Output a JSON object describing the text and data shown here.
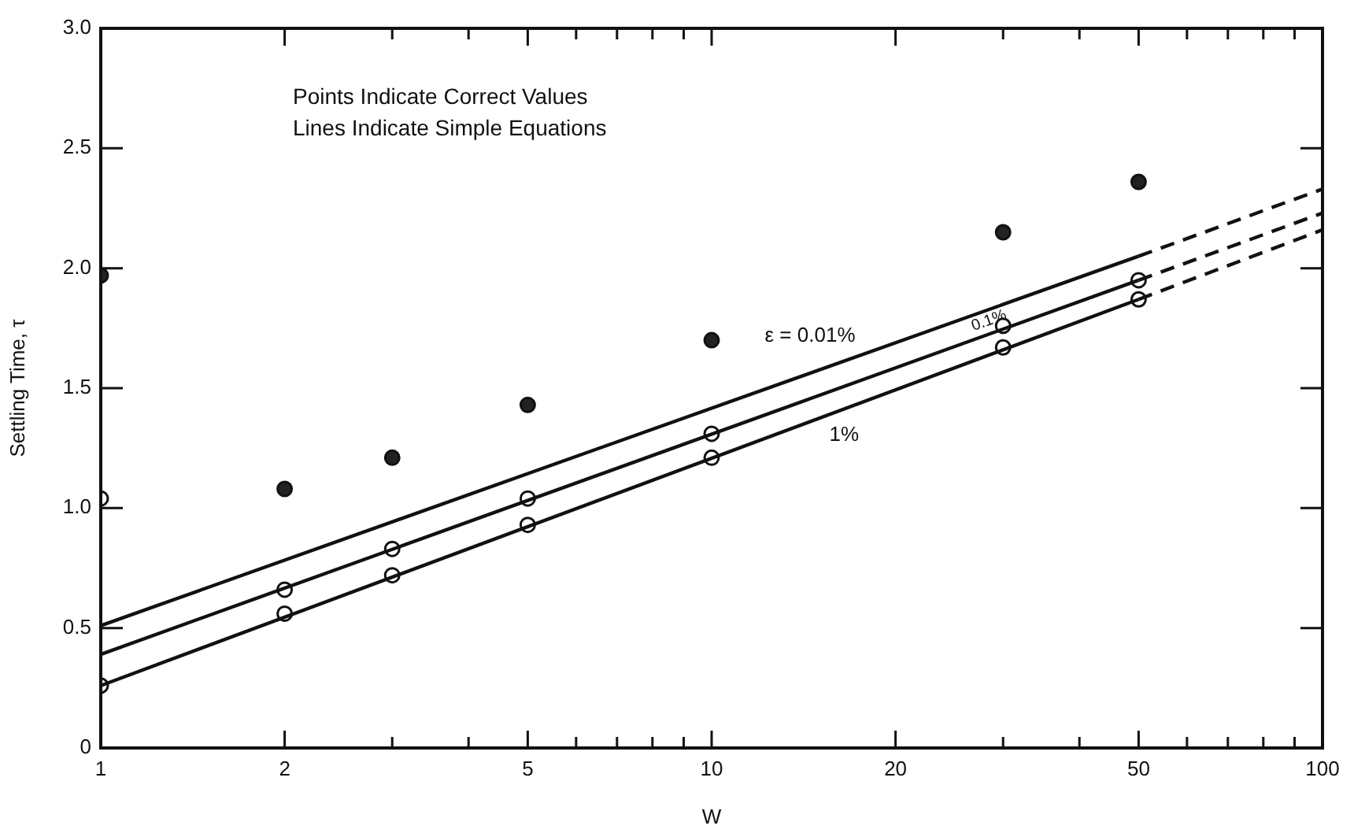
{
  "chart_data": {
    "type": "line",
    "xlabel": "W",
    "ylabel": "Settling Time, τ",
    "annotations": [
      "Points Indicate Correct Values",
      "Lines Indicate Simple Equations"
    ],
    "log": "x",
    "grid": false,
    "legend": false,
    "xlim": [
      1,
      100
    ],
    "xticks": [
      1,
      2,
      {
        "value": 3,
        "label": null
      },
      {
        "value": 4,
        "label": null
      },
      5,
      {
        "value": 6,
        "label": null
      },
      {
        "value": 7,
        "label": null
      },
      {
        "value": 8,
        "label": null
      },
      {
        "value": 9,
        "label": null
      },
      10,
      20,
      {
        "value": 30,
        "label": null
      },
      {
        "value": 40,
        "label": null
      },
      50,
      {
        "value": 60,
        "label": null
      },
      {
        "value": 70,
        "label": null
      },
      {
        "value": 80,
        "label": null
      },
      {
        "value": 90,
        "label": null
      },
      100
    ],
    "ylim": [
      0,
      3
    ],
    "yticks": [
      0,
      {
        "value": 0.5,
        "label": "0.5"
      },
      {
        "value": 1,
        "label": "1.0"
      },
      {
        "value": 1.5,
        "label": "1.5"
      },
      {
        "value": 2,
        "label": "2.0"
      },
      {
        "value": 2.5,
        "label": "2.5"
      },
      {
        "value": 3,
        "label": "3.0"
      }
    ],
    "series": [
      {
        "name": "ε = 0.01%",
        "type": "line",
        "x": [
          1,
          50
        ],
        "values": [
          0.51,
          2.05
        ],
        "color": "#111111",
        "marker": "none",
        "line_style": "solid"
      },
      {
        "type": "line",
        "x": [
          50,
          100
        ],
        "values": [
          2.05,
          2.33
        ],
        "color": "#111111",
        "marker": "none",
        "line_style": "dashed"
      },
      {
        "name": "0.1%",
        "type": "line",
        "x": [
          1,
          50
        ],
        "values": [
          0.39,
          1.95
        ],
        "color": "#111111",
        "marker": "none",
        "line_style": "solid"
      },
      {
        "type": "line",
        "x": [
          50,
          100
        ],
        "values": [
          1.95,
          2.23
        ],
        "color": "#111111",
        "marker": "none",
        "line_style": "dashed"
      },
      {
        "name": "1%",
        "type": "line",
        "x": [
          1,
          50
        ],
        "values": [
          0.26,
          1.87
        ],
        "color": "#111111",
        "marker": "none",
        "line_style": "solid"
      },
      {
        "type": "line",
        "x": [
          50,
          100
        ],
        "values": [
          1.87,
          2.16
        ],
        "color": "#111111",
        "marker": "none",
        "line_style": "dashed"
      },
      {
        "type": "scatter",
        "x": [
          1,
          2,
          3,
          5,
          10,
          30,
          50
        ],
        "values": [
          1.97,
          1.08,
          1.21,
          1.43,
          1.7,
          2.15,
          2.36
        ],
        "color": "#222222",
        "marker": "circle"
      },
      {
        "type": "scatter",
        "x": [
          1,
          2,
          3,
          5,
          10,
          30,
          50
        ],
        "values": [
          1.04,
          0.66,
          0.83,
          1.04,
          1.31,
          1.76,
          1.95
        ],
        "color": "#ffffff",
        "marker": "circle"
      },
      {
        "type": "scatter",
        "x": [
          1,
          2,
          3,
          5,
          10,
          30,
          50
        ],
        "values": [
          0.26,
          0.56,
          0.72,
          0.93,
          1.21,
          1.67,
          1.87
        ],
        "color": "#ffffff",
        "marker": "circle"
      }
    ]
  }
}
